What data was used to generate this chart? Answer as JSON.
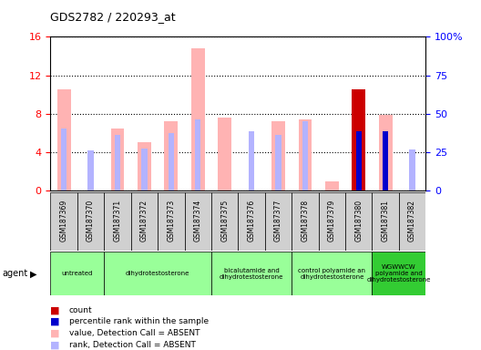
{
  "title": "GDS2782 / 220293_at",
  "samples": [
    "GSM187369",
    "GSM187370",
    "GSM187371",
    "GSM187372",
    "GSM187373",
    "GSM187374",
    "GSM187375",
    "GSM187376",
    "GSM187377",
    "GSM187378",
    "GSM187379",
    "GSM187380",
    "GSM187381",
    "GSM187382"
  ],
  "value_absent": [
    10.5,
    null,
    6.5,
    5.0,
    7.2,
    14.8,
    7.6,
    null,
    7.2,
    7.4,
    1.0,
    null,
    7.9,
    null
  ],
  "rank_absent": [
    6.5,
    4.2,
    5.8,
    4.4,
    6.0,
    7.4,
    null,
    6.2,
    5.8,
    7.2,
    null,
    null,
    6.0,
    4.3
  ],
  "count": [
    null,
    null,
    null,
    null,
    null,
    null,
    null,
    null,
    null,
    null,
    null,
    10.5,
    null,
    null
  ],
  "percentile": [
    null,
    null,
    null,
    null,
    null,
    null,
    null,
    null,
    null,
    null,
    null,
    6.2,
    6.2,
    null
  ],
  "ylim": [
    0,
    16
  ],
  "y2lim": [
    0,
    100
  ],
  "yticks": [
    0,
    4,
    8,
    12,
    16
  ],
  "ytick_labels": [
    "0",
    "4",
    "8",
    "12",
    "16"
  ],
  "y2ticks": [
    0,
    25,
    50,
    75,
    100
  ],
  "y2tick_labels": [
    "0",
    "25",
    "50",
    "75",
    "100%"
  ],
  "color_value_absent": "#ffb3b3",
  "color_rank_absent": "#b3b3ff",
  "color_count": "#cc0000",
  "color_percentile": "#0000cc",
  "bg_color_sample": "#d0d0d0",
  "bg_color_agent_light": "#99ff99",
  "bg_color_agent_dark": "#33cc33",
  "agents": [
    {
      "label": "untreated",
      "cols": [
        0,
        1
      ],
      "dark": false
    },
    {
      "label": "dihydrotestosterone",
      "cols": [
        1,
        2,
        3,
        4
      ],
      "dark": false
    },
    {
      "label": "bicalutamide and\ndihydrotestosterone",
      "cols": [
        4,
        5,
        6,
        7
      ],
      "dark": false
    },
    {
      "label": "control polyamide an\ndihydrotestosterone",
      "cols": [
        7,
        8,
        9,
        10
      ],
      "dark": false
    },
    {
      "label": "WGWWCW\npolyamide and\ndihydrotestosterone",
      "cols": [
        10,
        11,
        12,
        13,
        14
      ],
      "dark": true
    }
  ],
  "legend_items": [
    {
      "color": "#cc0000",
      "label": "count"
    },
    {
      "color": "#0000cc",
      "label": "percentile rank within the sample"
    },
    {
      "color": "#ffb3b3",
      "label": "value, Detection Call = ABSENT"
    },
    {
      "color": "#b3b3ff",
      "label": "rank, Detection Call = ABSENT"
    }
  ]
}
